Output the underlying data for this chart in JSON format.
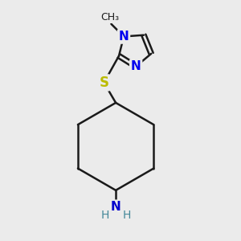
{
  "background_color": "#ebebeb",
  "bond_color": "#1a1a1a",
  "bond_width": 1.8,
  "N_color": "#0000ee",
  "S_color": "#bbbb00",
  "NH_color": "#448899",
  "N_amine_color": "#0000cc",
  "text_color": "#1a1a1a",
  "figsize": [
    3.0,
    3.0
  ],
  "dpi": 100,
  "xlim": [
    0,
    10
  ],
  "ylim": [
    0,
    10
  ]
}
